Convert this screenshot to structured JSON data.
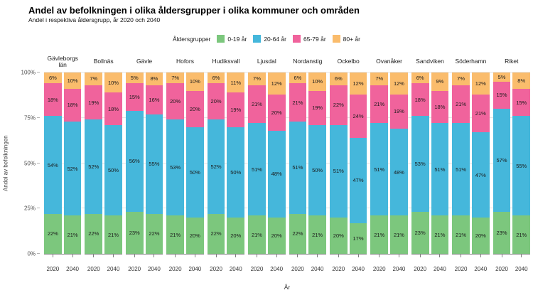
{
  "title": "Andel av befolkningen i olika åldersgrupper i olika kommuner och områden",
  "subtitle": "Andel i respektiva åldersgrupp, år 2020 och 2040",
  "legend": {
    "label": "Åldersgrupper",
    "items": [
      {
        "label": "0-19 år",
        "color": "#7CC77D"
      },
      {
        "label": "20-64 år",
        "color": "#45B7DB"
      },
      {
        "label": "65-79 år",
        "color": "#F0639C"
      },
      {
        "label": "80+ år",
        "color": "#FABC6C"
      }
    ]
  },
  "y_axis": {
    "title": "Andel av befolkningen",
    "ticks": [
      "0%",
      "25%",
      "50%",
      "75%",
      "100%"
    ]
  },
  "x_axis": {
    "title": "År"
  },
  "chart_data": {
    "type": "bar",
    "stacked": true,
    "unit": "%",
    "title": "Andel av befolkningen i olika åldersgrupper i olika kommuner och områden",
    "subtitle": "Andel i respektiva åldersgrupp, år 2020 och 2040",
    "xlabel": "År",
    "ylabel": "Andel av befolkningen",
    "ylim": [
      0,
      100
    ],
    "grid": true,
    "legend_position": "top-center",
    "series_order": [
      "0-19 år",
      "20-64 år",
      "65-79 år",
      "80+ år"
    ],
    "colors": {
      "0-19 år": "#7CC77D",
      "20-64 år": "#45B7DB",
      "65-79 år": "#F0639C",
      "80+ år": "#FABC6C"
    },
    "groups": [
      {
        "name": "Gävleborgs län",
        "bars": [
          {
            "year": "2020",
            "values": [
              22,
              54,
              18,
              6
            ]
          },
          {
            "year": "2040",
            "values": [
              21,
              52,
              18,
              10
            ]
          }
        ]
      },
      {
        "name": "Bollnäs",
        "bars": [
          {
            "year": "2020",
            "values": [
              22,
              52,
              19,
              7
            ]
          },
          {
            "year": "2040",
            "values": [
              21,
              50,
              18,
              10
            ]
          }
        ]
      },
      {
        "name": "Gävle",
        "bars": [
          {
            "year": "2020",
            "values": [
              23,
              56,
              15,
              5
            ]
          },
          {
            "year": "2040",
            "values": [
              22,
              55,
              16,
              8
            ]
          }
        ]
      },
      {
        "name": "Hofors",
        "bars": [
          {
            "year": "2020",
            "values": [
              21,
              53,
              20,
              7
            ]
          },
          {
            "year": "2040",
            "values": [
              20,
              50,
              20,
              10
            ]
          }
        ]
      },
      {
        "name": "Hudiksvall",
        "bars": [
          {
            "year": "2020",
            "values": [
              22,
              52,
              20,
              6
            ]
          },
          {
            "year": "2040",
            "values": [
              20,
              50,
              19,
              11
            ]
          }
        ]
      },
      {
        "name": "Ljusdal",
        "bars": [
          {
            "year": "2020",
            "values": [
              21,
              51,
              21,
              7
            ]
          },
          {
            "year": "2040",
            "values": [
              20,
              48,
              20,
              12
            ]
          }
        ]
      },
      {
        "name": "Nordanstig",
        "bars": [
          {
            "year": "2020",
            "values": [
              22,
              51,
              21,
              6
            ]
          },
          {
            "year": "2040",
            "values": [
              21,
              50,
              19,
              10
            ]
          }
        ]
      },
      {
        "name": "Ockelbo",
        "bars": [
          {
            "year": "2020",
            "values": [
              20,
              51,
              22,
              6
            ]
          },
          {
            "year": "2040",
            "values": [
              17,
              47,
              24,
              12
            ]
          }
        ]
      },
      {
        "name": "Ovanåker",
        "bars": [
          {
            "year": "2020",
            "values": [
              21,
              51,
              21,
              7
            ]
          },
          {
            "year": "2040",
            "values": [
              21,
              48,
              19,
              12
            ]
          }
        ]
      },
      {
        "name": "Sandviken",
        "bars": [
          {
            "year": "2020",
            "values": [
              23,
              53,
              18,
              6
            ]
          },
          {
            "year": "2040",
            "values": [
              21,
              51,
              18,
              9
            ]
          }
        ]
      },
      {
        "name": "Söderhamn",
        "bars": [
          {
            "year": "2020",
            "values": [
              21,
              51,
              21,
              7
            ]
          },
          {
            "year": "2040",
            "values": [
              20,
              47,
              21,
              12
            ]
          }
        ]
      },
      {
        "name": "Riket",
        "bars": [
          {
            "year": "2020",
            "values": [
              23,
              57,
              15,
              5
            ]
          },
          {
            "year": "2040",
            "values": [
              21,
              55,
              15,
              8
            ]
          }
        ]
      }
    ]
  }
}
